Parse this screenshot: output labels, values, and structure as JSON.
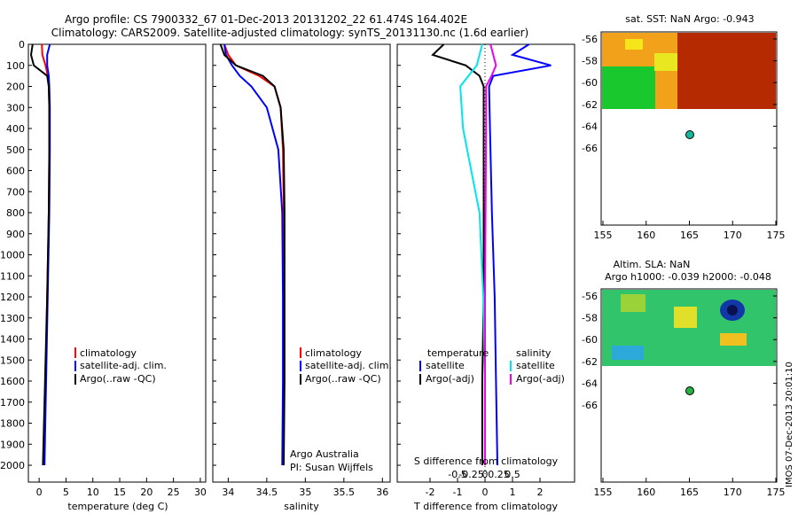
{
  "title_line1": "Argo profile: CS 7900332_67 01-Dec-2013 20131202_22 61.474S 164.402E",
  "title_line2": "Climatology: CARS2009. Satellite-adjusted climatology: synTS_20131130.nc (1.6d earlier)",
  "depth_ticks": [
    0,
    100,
    200,
    300,
    400,
    500,
    600,
    700,
    800,
    900,
    1000,
    1100,
    1200,
    1300,
    1400,
    1500,
    1600,
    1700,
    1800,
    1900,
    2000
  ],
  "temp_panel": {
    "xlabel": "temperature (deg C)",
    "xticks": [
      0,
      5,
      10,
      15,
      20,
      25,
      30
    ],
    "legend": [
      "climatology",
      "satellite-adj. clim.",
      "Argo(..raw -QC)"
    ]
  },
  "sal_panel": {
    "xlabel": "salinity",
    "xticks": [
      "34",
      "34.5",
      "35",
      "35.5",
      "36"
    ],
    "legend": [
      "climatology",
      "satellite-adj. clim.",
      "Argo(..raw -QC)"
    ],
    "note1": "Argo Australia",
    "note2": "PI: Susan Wijffels"
  },
  "diff_panel": {
    "legend_head_t": "temperature",
    "legend_head_s": "salinity",
    "legend_t": [
      "satellite",
      "Argo(-adj)"
    ],
    "legend_s": [
      "satellite",
      "Argo(-adj)"
    ],
    "top_label": "S difference from climatology",
    "top_ticks": [
      "-0.5",
      "-0.25",
      "0",
      "0.25",
      "0.5"
    ],
    "bottom_label": "T difference from climatology",
    "bottom_ticks": [
      "-2",
      "-1",
      "0",
      "1",
      "2"
    ]
  },
  "sst_map": {
    "title": "sat. SST: NaN Argo: -0.943",
    "yticks": [
      "-56",
      "-58",
      "-60",
      "-62",
      "-64",
      "-66"
    ],
    "xticks": [
      "155",
      "160",
      "165",
      "170",
      "175"
    ]
  },
  "sla_map": {
    "title1": "Altim. SLA: NaN",
    "title2": "Argo h1000: -0.039 h2000: -0.048",
    "yticks": [
      "-56",
      "-58",
      "-60",
      "-62",
      "-64",
      "-66"
    ],
    "xticks": [
      "155",
      "160",
      "165",
      "170",
      "175"
    ]
  },
  "footer": "IMOS 07-Dec-2013 20:01:10",
  "colors": {
    "climatology": "#ff0000",
    "satellite": "#0000ff",
    "argo": "#000000",
    "sat_s": "#00e5ee",
    "argo_s": "#ee00ee"
  },
  "chart_data": [
    {
      "type": "line",
      "xlabel": "temperature (deg C)",
      "ylim": [
        2080,
        0
      ],
      "xlim": [
        -2,
        31
      ],
      "series": [
        {
          "name": "climatology",
          "depth": [
            0,
            50,
            100,
            150,
            200,
            300,
            500,
            800,
            1200,
            1600,
            2000
          ],
          "values": [
            0.5,
            0.6,
            1.2,
            1.6,
            1.8,
            1.9,
            1.9,
            1.8,
            1.5,
            1.2,
            0.9
          ]
        },
        {
          "name": "satellite-adj. clim.",
          "depth": [
            0,
            50,
            100,
            150,
            200,
            300,
            500,
            800,
            1200,
            1600,
            2000
          ],
          "values": [
            2.0,
            1.5,
            1.5,
            1.8,
            1.9,
            2.0,
            2.0,
            1.9,
            1.6,
            1.3,
            1.0
          ]
        },
        {
          "name": "Argo(..raw -QC)",
          "depth": [
            0,
            50,
            100,
            150,
            200,
            300,
            500,
            800,
            1200,
            1600,
            2000
          ],
          "values": [
            -1.2,
            -1.5,
            -1.0,
            1.5,
            1.8,
            1.9,
            1.9,
            1.8,
            1.5,
            1.1,
            0.7
          ]
        }
      ]
    },
    {
      "type": "line",
      "xlabel": "salinity",
      "ylim": [
        2080,
        0
      ],
      "xlim": [
        33.8,
        36.1
      ],
      "series": [
        {
          "name": "climatology",
          "depth": [
            0,
            50,
            100,
            150,
            200,
            300,
            500,
            800,
            1200,
            1600,
            2000
          ],
          "values": [
            33.95,
            34.0,
            34.1,
            34.4,
            34.6,
            34.68,
            34.71,
            34.72,
            34.72,
            34.72,
            34.71
          ]
        },
        {
          "name": "satellite-adj. clim.",
          "depth": [
            0,
            50,
            100,
            150,
            200,
            300,
            500,
            800,
            1200,
            1600,
            2000
          ],
          "values": [
            33.95,
            33.97,
            34.05,
            34.15,
            34.3,
            34.5,
            34.65,
            34.7,
            34.71,
            34.71,
            34.7
          ]
        },
        {
          "name": "Argo(..raw -QC)",
          "depth": [
            0,
            50,
            100,
            150,
            200,
            300,
            500,
            800,
            1200,
            1600,
            2000
          ],
          "values": [
            33.9,
            33.95,
            34.1,
            34.45,
            34.6,
            34.68,
            34.72,
            34.73,
            34.73,
            34.73,
            34.72
          ]
        }
      ]
    },
    {
      "type": "line",
      "xlabel": "T difference from climatology",
      "ylim": [
        2080,
        0
      ],
      "series": [
        {
          "name": "temperature satellite",
          "depth": [
            0,
            50,
            100,
            150,
            200,
            400,
            800,
            1200,
            1600,
            2000
          ],
          "values": [
            1.6,
            1.0,
            2.4,
            0.3,
            0.15,
            0.18,
            0.25,
            0.35,
            0.4,
            0.45
          ]
        },
        {
          "name": "temperature Argo(-adj)",
          "depth": [
            0,
            50,
            100,
            150,
            200,
            400,
            800,
            1200,
            1600,
            2000
          ],
          "values": [
            -1.5,
            -1.9,
            -0.7,
            -0.2,
            -0.05,
            -0.05,
            -0.05,
            -0.05,
            -0.1,
            -0.1
          ]
        },
        {
          "name": "salinity satellite",
          "depth": [
            0,
            100,
            200,
            400,
            800,
            1200,
            1600,
            2000
          ],
          "values": [
            -0.05,
            -0.15,
            -0.45,
            -0.4,
            -0.1,
            -0.03,
            0,
            0
          ]
        },
        {
          "name": "salinity Argo(-adj)",
          "depth": [
            0,
            100,
            150,
            200,
            400,
            800,
            1200,
            1600,
            2000
          ],
          "values": [
            0.1,
            0.2,
            0.12,
            0.02,
            0.02,
            0.01,
            0,
            0,
            0
          ]
        }
      ]
    }
  ]
}
